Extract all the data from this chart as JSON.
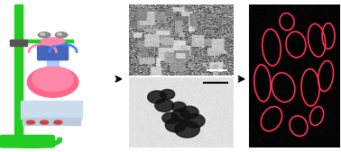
{
  "fig_width": 3.78,
  "fig_height": 1.69,
  "dpi": 100,
  "bg_color": "#ffffff",
  "cells": [
    [
      0.25,
      0.2,
      0.12,
      0.08,
      20
    ],
    [
      0.55,
      0.15,
      0.1,
      0.07,
      -10
    ],
    [
      0.75,
      0.22,
      0.08,
      0.06,
      30
    ],
    [
      0.15,
      0.45,
      0.09,
      0.13,
      10
    ],
    [
      0.38,
      0.42,
      0.13,
      0.1,
      -15
    ],
    [
      0.68,
      0.42,
      0.1,
      0.13,
      5
    ],
    [
      0.85,
      0.5,
      0.08,
      0.11,
      -20
    ],
    [
      0.25,
      0.7,
      0.1,
      0.13,
      15
    ],
    [
      0.52,
      0.72,
      0.11,
      0.09,
      -10
    ],
    [
      0.75,
      0.75,
      0.09,
      0.12,
      25
    ],
    [
      0.88,
      0.78,
      0.07,
      0.09,
      0
    ],
    [
      0.42,
      0.88,
      0.08,
      0.06,
      -5
    ]
  ],
  "cell_color": "#ff3355",
  "arrow_color": "black",
  "rod_color": "#22cc22",
  "flask_color1": "#ff6688",
  "flask_color2": "#ff88aa",
  "flask_neck_color": "#aaccff",
  "clamp_color": "#4466bb",
  "ball_color": "#888888",
  "scale_color1": "#ccddee",
  "scale_color2": "#bbccdd",
  "knob_color": "#cc4444"
}
